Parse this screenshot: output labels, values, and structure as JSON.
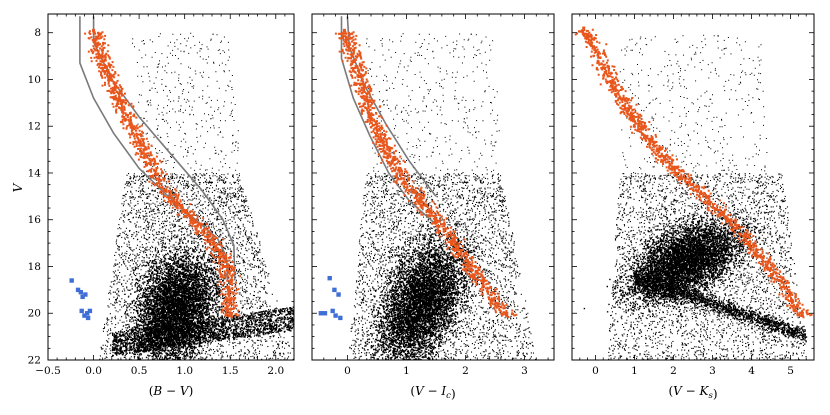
{
  "figure": {
    "y_axis_label": "V",
    "colors": {
      "field": "#000000",
      "highlight": "#e8561c",
      "blue_points": "#3f6fd6",
      "isochrone": "#7a7a7a"
    }
  },
  "chart_data": [
    {
      "type": "scatter",
      "xlabel": "(B − V)",
      "ylabel": "V",
      "xlim": [
        -0.5,
        2.2
      ],
      "ylim": [
        22,
        7.2
      ],
      "y_inverted": true,
      "xticks": [
        "−0.5",
        "0.0",
        "0.5",
        "1.0",
        "1.5",
        "2.0"
      ],
      "xtick_values": [
        -0.5,
        0.0,
        0.5,
        1.0,
        1.5,
        2.0
      ],
      "yticks": [
        "8",
        "10",
        "12",
        "14",
        "16",
        "18",
        "20",
        "22"
      ],
      "ytick_values": [
        8,
        10,
        12,
        14,
        16,
        18,
        20,
        22
      ],
      "grid": false,
      "series": [
        {
          "role": "highlighted-sequence",
          "x": [
            0.0,
            0.08,
            0.17,
            0.28,
            0.4,
            0.52,
            0.62,
            0.72,
            0.84,
            0.98,
            1.12,
            1.26,
            1.37,
            1.45,
            1.48,
            1.49
          ],
          "y": [
            7.9,
            9.0,
            10.0,
            10.9,
            11.9,
            12.8,
            13.6,
            14.3,
            15.0,
            15.6,
            16.1,
            16.7,
            17.3,
            18.0,
            19.0,
            20.1
          ]
        },
        {
          "role": "blue-points",
          "x": [
            -0.24,
            -0.17,
            -0.14,
            -0.12,
            -0.09,
            -0.13,
            -0.07,
            -0.06,
            -0.1,
            -0.04
          ],
          "y": [
            18.6,
            19.0,
            19.1,
            19.3,
            19.2,
            19.9,
            20.0,
            20.2,
            20.1,
            19.9
          ]
        }
      ],
      "isochrone": {
        "left": {
          "x": [
            -0.15,
            -0.15,
            0.0,
            0.22,
            0.5,
            0.82,
            1.12,
            1.36,
            1.46,
            1.47
          ],
          "y": [
            7.3,
            9.3,
            10.8,
            12.3,
            13.8,
            15.0,
            16.0,
            16.8,
            17.6,
            18.6
          ]
        },
        "right": {
          "x": [
            0.0,
            0.0,
            0.2,
            0.5,
            0.85,
            1.18,
            1.42,
            1.54,
            1.55
          ],
          "y": [
            7.3,
            8.4,
            10.0,
            11.6,
            13.2,
            14.7,
            16.0,
            17.1,
            18.6
          ]
        }
      }
    },
    {
      "type": "scatter",
      "xlabel": "(V − I_c)",
      "ylabel": "",
      "xlim": [
        -0.6,
        3.5
      ],
      "ylim": [
        22,
        7.2
      ],
      "y_inverted": true,
      "xticks": [
        "0",
        "1",
        "2",
        "3"
      ],
      "xtick_values": [
        0,
        1,
        2,
        3
      ],
      "grid": false,
      "series": [
        {
          "role": "highlighted-sequence",
          "x": [
            -0.05,
            0.08,
            0.22,
            0.4,
            0.58,
            0.76,
            0.98,
            1.22,
            1.5,
            1.78,
            2.05,
            2.3,
            2.55,
            2.7
          ],
          "y": [
            7.9,
            9.0,
            10.2,
            11.5,
            12.6,
            13.5,
            14.4,
            15.2,
            16.0,
            16.9,
            17.9,
            18.8,
            19.6,
            20.1
          ]
        },
        {
          "role": "blue-points",
          "x": [
            -0.45,
            -0.38,
            -0.3,
            -0.22,
            -0.25,
            -0.15,
            -0.2,
            -0.12
          ],
          "y": [
            20.0,
            20.0,
            18.5,
            19.0,
            19.9,
            19.2,
            20.1,
            20.2
          ]
        }
      ],
      "isochrone": {
        "left": {
          "x": [
            -0.1,
            -0.1,
            0.1,
            0.38,
            0.7,
            1.05,
            1.5
          ],
          "y": [
            7.3,
            9.1,
            10.8,
            12.4,
            14.0,
            15.2,
            16.2
          ]
        },
        "right": {
          "x": [
            0.0,
            0.03,
            0.3,
            0.65,
            1.05,
            1.5
          ],
          "y": [
            7.3,
            8.6,
            10.3,
            11.9,
            13.5,
            15.0
          ]
        }
      }
    },
    {
      "type": "scatter",
      "xlabel": "(V − K_s)",
      "ylabel": "",
      "xlim": [
        -0.6,
        5.6
      ],
      "ylim": [
        22,
        7.2
      ],
      "y_inverted": true,
      "xticks": [
        "0",
        "1",
        "2",
        "3",
        "4",
        "5"
      ],
      "xtick_values": [
        0,
        1,
        2,
        3,
        4,
        5
      ],
      "grid": false,
      "series": [
        {
          "role": "highlighted-sequence",
          "x": [
            -0.3,
            -0.05,
            0.2,
            0.5,
            0.85,
            1.2,
            1.6,
            2.0,
            2.45,
            2.9,
            3.35,
            3.8,
            4.25,
            4.7,
            5.05,
            5.3
          ],
          "y": [
            7.8,
            8.6,
            9.5,
            10.4,
            11.3,
            12.1,
            13.0,
            13.8,
            14.5,
            15.2,
            15.9,
            16.7,
            17.6,
            18.6,
            19.5,
            20.1
          ]
        }
      ]
    }
  ]
}
